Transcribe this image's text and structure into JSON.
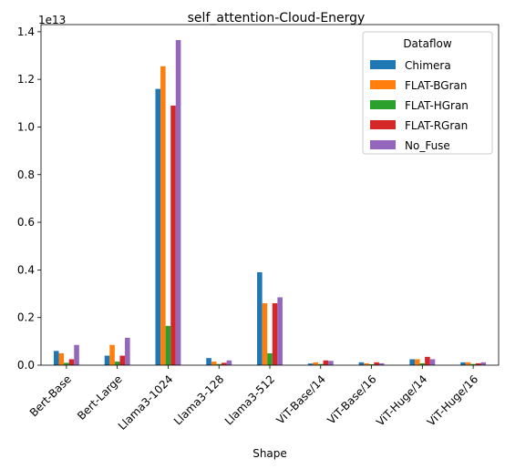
{
  "chart_data": {
    "type": "bar",
    "title": "self_attention-Cloud-Energy",
    "xlabel": "Shape",
    "ylabel": "",
    "y_offset_label": "1e13",
    "y_scale": 10000000000000.0,
    "ylim": [
      0,
      1.43
    ],
    "yticks": [
      0.0,
      0.2,
      0.4,
      0.6,
      0.8,
      1.0,
      1.2,
      1.4
    ],
    "ytick_labels": [
      "0.0",
      "0.2",
      "0.4",
      "0.6",
      "0.8",
      "1.0",
      "1.2",
      "1.4"
    ],
    "grid": false,
    "legend": {
      "title": "Dataflow",
      "placement": "top-right"
    },
    "categories": [
      "Bert-Base",
      "Bert-Large",
      "Llama3-1024",
      "Llama3-128",
      "Llama3-512",
      "ViT-Base/14",
      "ViT-Base/16",
      "ViT-Huge/14",
      "ViT-Huge/16"
    ],
    "series": [
      {
        "name": "Chimera",
        "color": "#1f77b4",
        "values": [
          0.06,
          0.04,
          1.16,
          0.03,
          0.39,
          0.007,
          0.012,
          0.025,
          0.012
        ]
      },
      {
        "name": "FLAT-BGran",
        "color": "#ff7f0e",
        "values": [
          0.05,
          0.085,
          1.255,
          0.015,
          0.26,
          0.012,
          0.008,
          0.025,
          0.012
        ]
      },
      {
        "name": "FLAT-HGran",
        "color": "#2ca02c",
        "values": [
          0.01,
          0.015,
          0.165,
          0.005,
          0.05,
          0.005,
          0.004,
          0.008,
          0.005
        ]
      },
      {
        "name": "FLAT-RGran",
        "color": "#d62728",
        "values": [
          0.025,
          0.04,
          1.09,
          0.01,
          0.26,
          0.02,
          0.012,
          0.035,
          0.008
        ]
      },
      {
        "name": "No_Fuse",
        "color": "#9467bd",
        "values": [
          0.085,
          0.115,
          1.365,
          0.02,
          0.285,
          0.018,
          0.008,
          0.025,
          0.012
        ]
      }
    ]
  }
}
